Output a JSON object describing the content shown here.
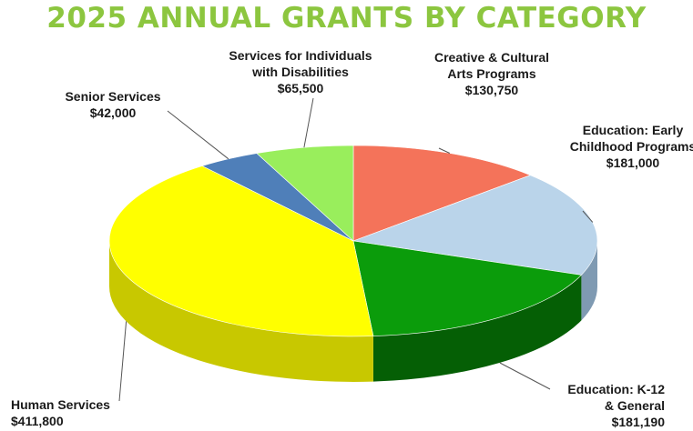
{
  "title": "2025 ANNUAL GRANTS BY CATEGORY",
  "chart_data": {
    "type": "pie",
    "title": "2025 ANNUAL GRANTS BY CATEGORY",
    "slices": [
      {
        "label_lines": [
          "Creative & Cultural",
          "Arts  Programs"
        ],
        "value": 130750,
        "value_text": "$130,750",
        "color": "#f4735a",
        "side": "#b04e3a"
      },
      {
        "label_lines": [
          "Education: Early",
          "Childhood Programs"
        ],
        "value": 181000,
        "value_text": "$181,000",
        "color": "#bad4ea",
        "side": "#7f9ab2"
      },
      {
        "label_lines": [
          "Education: K-12",
          "& General"
        ],
        "value": 181190,
        "value_text": "$181,190",
        "color": "#0b9c0b",
        "side": "#055f05"
      },
      {
        "label_lines": [
          "Human Services"
        ],
        "value": 411800,
        "value_text": "$411,800",
        "color": "#ffff00",
        "side": "#c8c800"
      },
      {
        "label_lines": [
          "Senior Services"
        ],
        "value": 42000,
        "value_text": "$42,000",
        "color": "#4f7fb9",
        "side": "#355a85"
      },
      {
        "label_lines": [
          "Services for Individuals",
          "with Disabilities"
        ],
        "value": 65500,
        "value_text": "$65,500",
        "color": "#99ee5c",
        "side": "#66a83c"
      }
    ]
  }
}
